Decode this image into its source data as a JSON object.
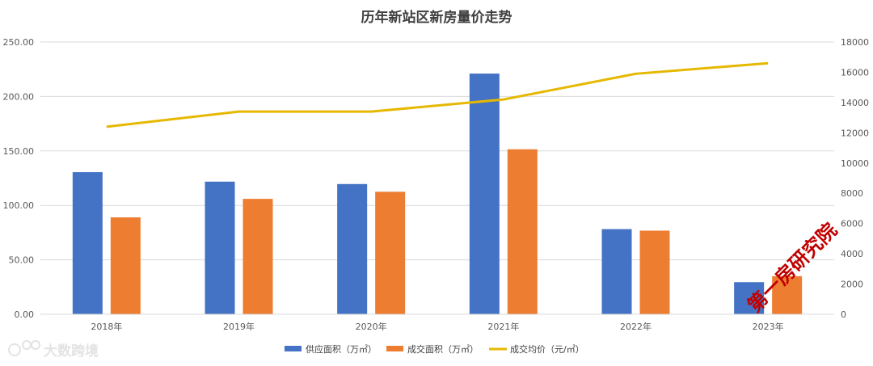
{
  "chart_data": {
    "type": "bar",
    "title": "历年新站区新房量价走势",
    "categories": [
      "2018年",
      "2019年",
      "2020年",
      "2021年",
      "2022年",
      "2023年"
    ],
    "series": [
      {
        "name": "供应面积（万㎡）",
        "type": "bar",
        "axis": "left",
        "color": "#4472c4",
        "values": [
          130.5,
          121.8,
          119.6,
          221.0,
          78.2,
          29.5
        ]
      },
      {
        "name": "成交面积（万㎡）",
        "type": "bar",
        "axis": "left",
        "color": "#ed7d31",
        "values": [
          89.0,
          106.0,
          112.5,
          151.5,
          76.8,
          35.0
        ]
      },
      {
        "name": "成交均价（元/㎡）",
        "type": "line",
        "axis": "right",
        "color": "#e6b800",
        "values": [
          12400,
          13400,
          13400,
          14200,
          15900,
          16600
        ]
      }
    ],
    "y_left": {
      "ylim": [
        0,
        250
      ],
      "ticks": [
        "0.00",
        "50.00",
        "100.00",
        "150.00",
        "200.00",
        "250.00"
      ]
    },
    "y_right": {
      "ylim": [
        0,
        18000
      ],
      "ticks": [
        "0",
        "2000",
        "4000",
        "6000",
        "8000",
        "10000",
        "12000",
        "14000",
        "16000",
        "18000"
      ]
    },
    "grid": true,
    "legend": "bottom-center"
  },
  "watermarks": {
    "stamp": "第一房研究院",
    "brand": "大数跨境"
  }
}
